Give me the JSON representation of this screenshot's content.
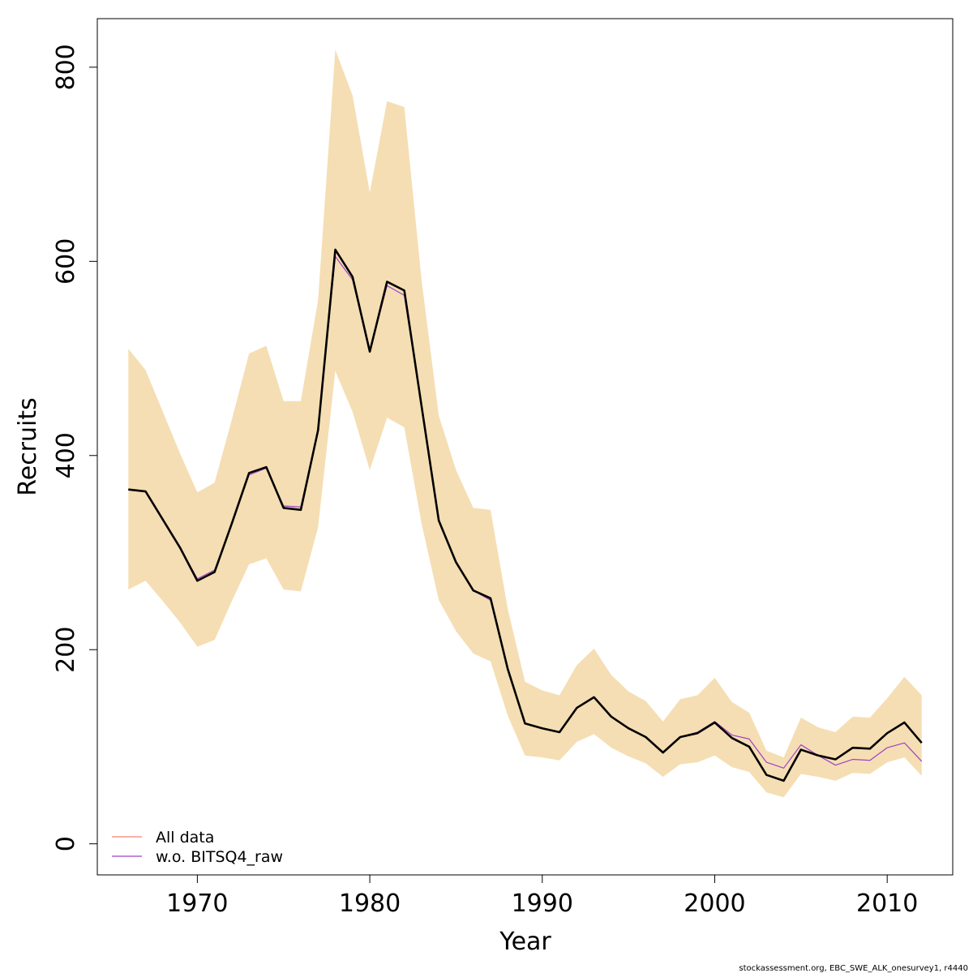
{
  "chart_data": {
    "type": "line",
    "title": "",
    "xlabel": "Year",
    "ylabel": "Recruits",
    "xlim": [
      1964.2,
      2013.8
    ],
    "ylim": [
      -32,
      850
    ],
    "x_ticks": [
      1970,
      1980,
      1990,
      2000,
      2010
    ],
    "y_ticks": [
      0,
      200,
      400,
      600,
      800
    ],
    "grid": false,
    "legend_position": "bottom-left",
    "footer": "stockassessment.org, EBC_SWE_ALK_onesurvey1, r4440",
    "x": [
      1966,
      1967,
      1968,
      1969,
      1970,
      1971,
      1972,
      1973,
      1974,
      1975,
      1976,
      1977,
      1978,
      1979,
      1980,
      1981,
      1982,
      1983,
      1984,
      1985,
      1986,
      1987,
      1988,
      1989,
      1990,
      1991,
      1992,
      1993,
      1994,
      1995,
      1996,
      1997,
      1998,
      1999,
      2000,
      2001,
      2002,
      2003,
      2004,
      2005,
      2006,
      2007,
      2008,
      2009,
      2010,
      2011,
      2012
    ],
    "band": {
      "color": "#F5DEB3",
      "upper": [
        510,
        488,
        445,
        402,
        362,
        372,
        437,
        505,
        513,
        456,
        456,
        560,
        818,
        771,
        671,
        765,
        759,
        581,
        441,
        385,
        346,
        344,
        242,
        167,
        158,
        153,
        184,
        201,
        174,
        157,
        147,
        126,
        149,
        153,
        171,
        146,
        135,
        96,
        89,
        130,
        120,
        115,
        131,
        130,
        150,
        172,
        153
      ],
      "lower": [
        262,
        271,
        250,
        228,
        203,
        210,
        250,
        288,
        294,
        262,
        260,
        326,
        487,
        445,
        385,
        439,
        429,
        330,
        251,
        219,
        196,
        188,
        132,
        91,
        89,
        86,
        105,
        113,
        99,
        90,
        83,
        69,
        82,
        84,
        91,
        79,
        74,
        53,
        48,
        72,
        69,
        65,
        73,
        72,
        84,
        89,
        70
      ]
    },
    "base_line": {
      "color": "#000000",
      "values": [
        365,
        363,
        334,
        305,
        271,
        280,
        330,
        382,
        388,
        346,
        344,
        426,
        612,
        584,
        507,
        579,
        570,
        451,
        333,
        290,
        261,
        253,
        180,
        124,
        119,
        115,
        140,
        151,
        131,
        119,
        110,
        94,
        110,
        114,
        125,
        109,
        100,
        71,
        65,
        97,
        91,
        87,
        99,
        98,
        114,
        125,
        104
      ]
    },
    "series": [
      {
        "name": "All data",
        "color": "#FA8072",
        "values": [
          365,
          363,
          334,
          305,
          271,
          280,
          330,
          382,
          388,
          346,
          344,
          426,
          612,
          584,
          507,
          579,
          570,
          451,
          333,
          290,
          261,
          253,
          180,
          124,
          119,
          115,
          140,
          151,
          131,
          119,
          110,
          94,
          110,
          114,
          125,
          109,
          100,
          71,
          65,
          97,
          91,
          87,
          99,
          98,
          114,
          125,
          104
        ]
      },
      {
        "name": "w.o. BITSQ4_raw",
        "color": "#A040C8",
        "values": [
          365,
          363,
          334,
          305,
          273,
          282,
          330,
          380,
          387,
          348,
          347,
          426,
          605,
          581,
          507,
          575,
          565,
          451,
          333,
          290,
          261,
          251,
          180,
          124,
          119,
          115,
          140,
          151,
          131,
          119,
          110,
          94,
          110,
          115,
          126,
          112,
          108,
          84,
          78,
          102,
          91,
          81,
          87,
          86,
          99,
          104,
          85
        ]
      }
    ]
  }
}
